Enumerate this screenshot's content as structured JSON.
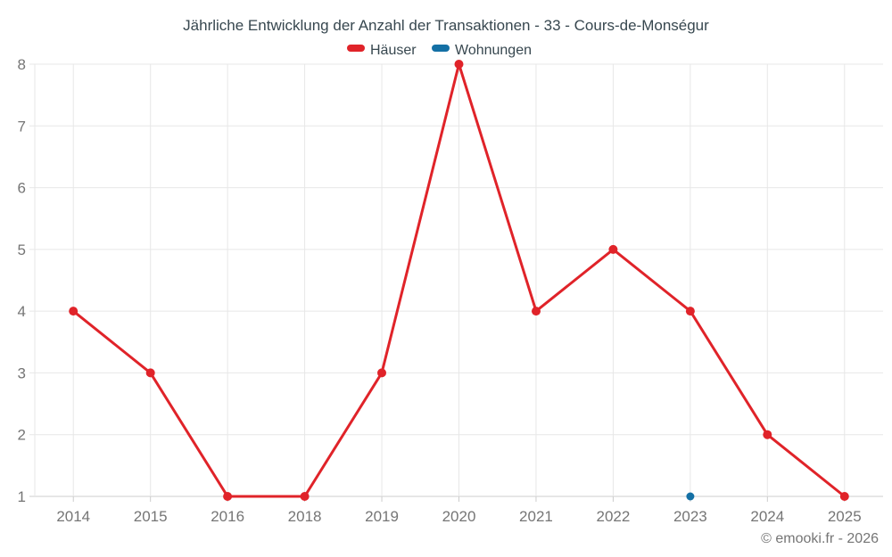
{
  "chart_data": {
    "type": "line",
    "title": "Jährliche Entwicklung der Anzahl der Transaktionen - 33 - Cours-de-Monségur",
    "categories": [
      "2014",
      "2015",
      "2016",
      "2018",
      "2019",
      "2020",
      "2021",
      "2022",
      "2023",
      "2024",
      "2025"
    ],
    "series": [
      {
        "name": "Häuser",
        "color": "#e02329",
        "values": [
          4,
          3,
          1,
          1,
          3,
          8,
          4,
          5,
          4,
          2,
          1
        ]
      },
      {
        "name": "Wohnungen",
        "color": "#1470a5",
        "values": [
          null,
          null,
          null,
          null,
          null,
          null,
          null,
          null,
          1,
          null,
          null
        ]
      }
    ],
    "xlabel": "",
    "ylabel": "",
    "ylim": [
      1,
      8
    ],
    "yticks": [
      1,
      2,
      3,
      4,
      5,
      6,
      7,
      8
    ],
    "grid": true,
    "legend_position": "top"
  },
  "colors": {
    "grid": "#e7e7e7",
    "axis_line": "#cccccc",
    "tick_label": "#757575",
    "title_text": "#37474f"
  },
  "footer": {
    "copyright": "© emooki.fr - 2026"
  }
}
